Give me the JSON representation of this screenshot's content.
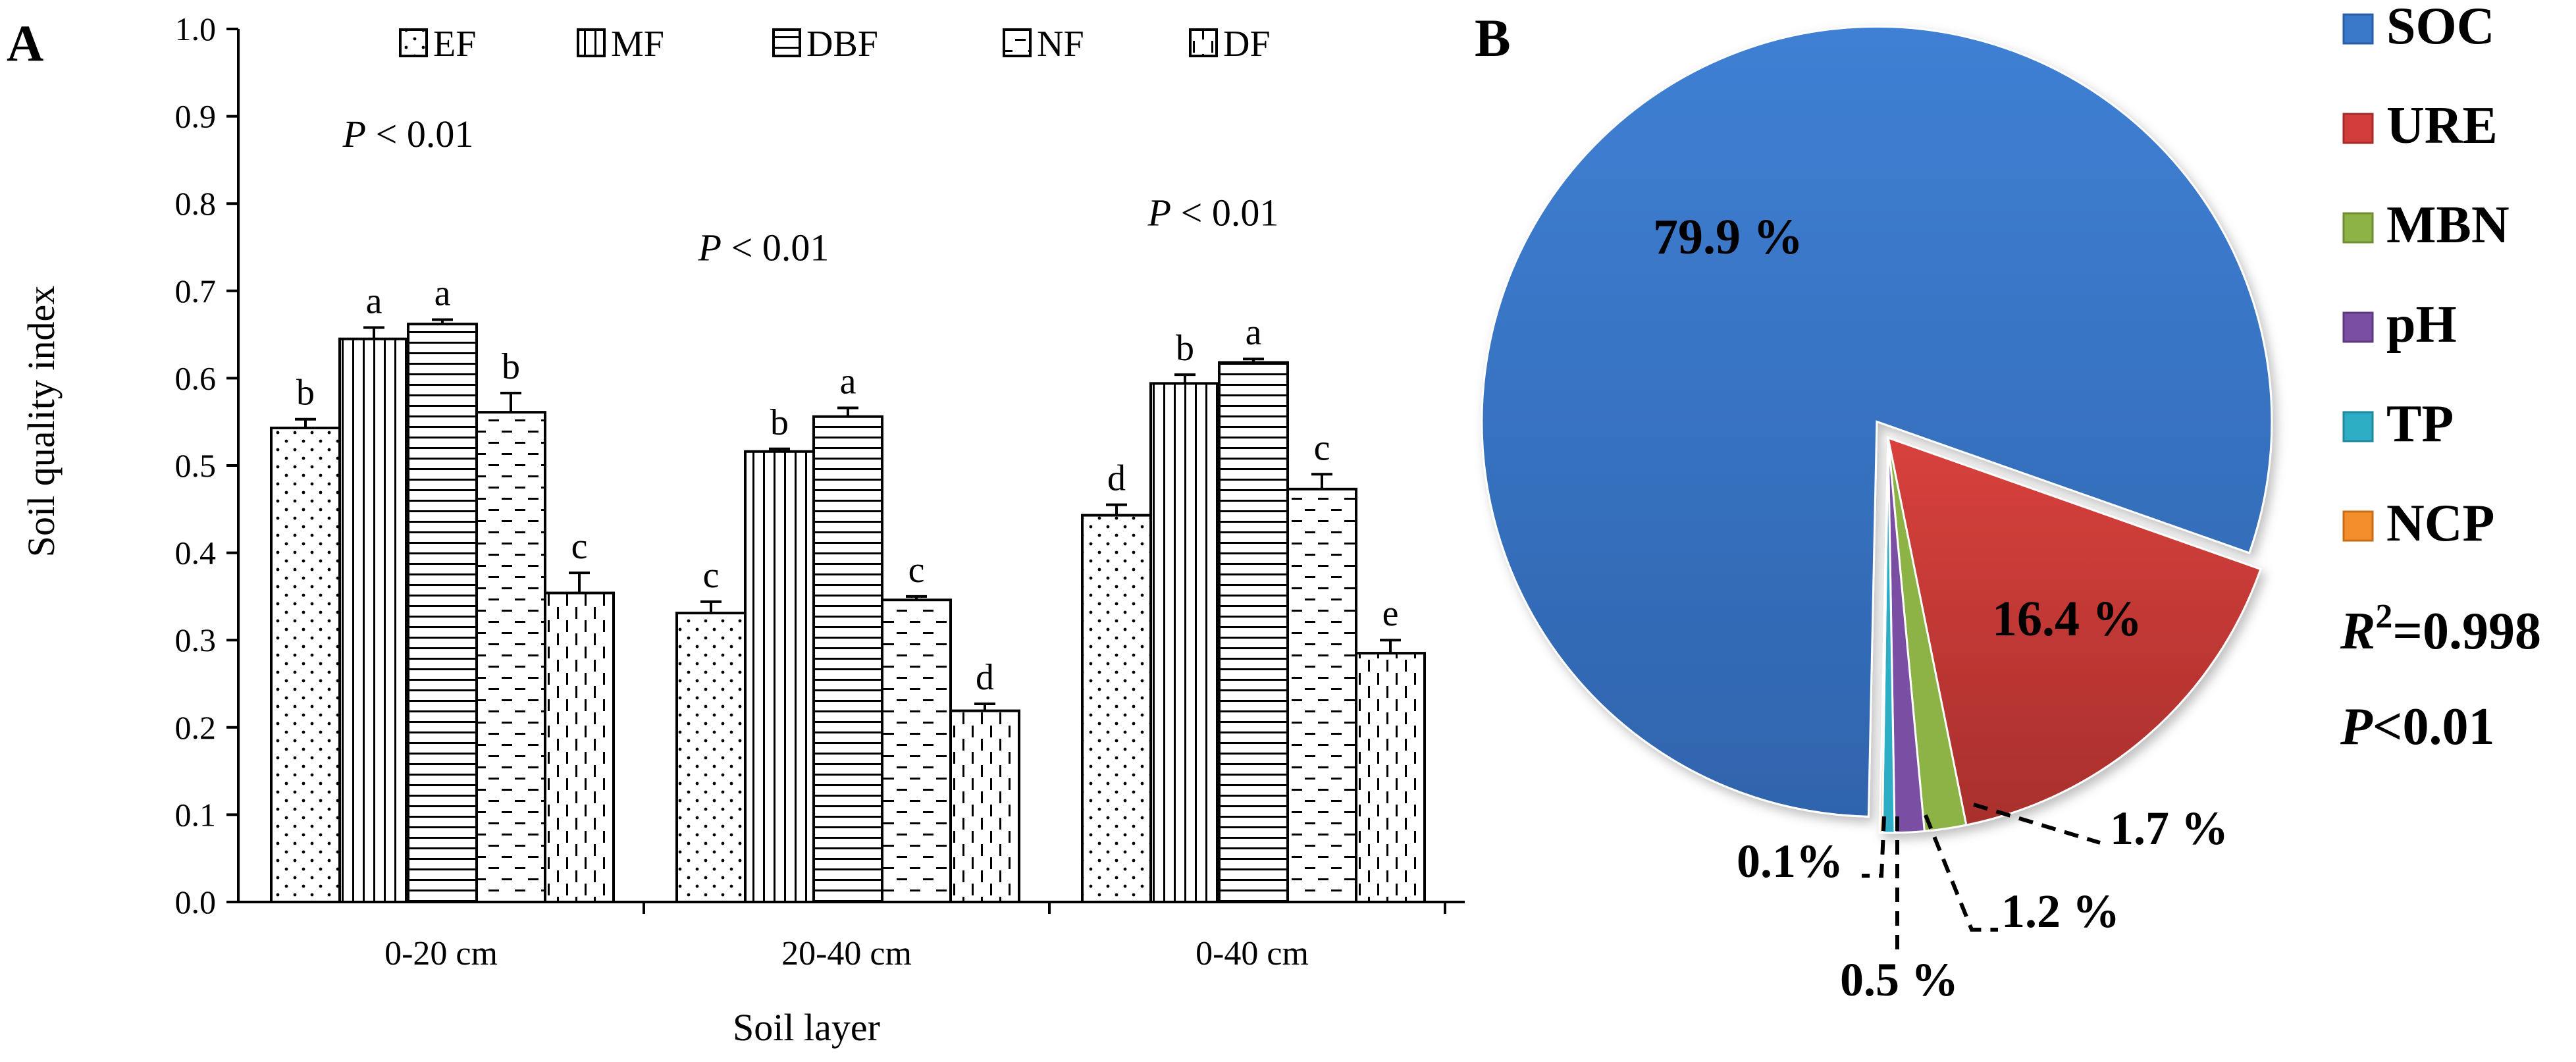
{
  "panel_a": {
    "label": "A",
    "legend_swatch_glyph": "□"
  },
  "panel_b": {
    "label": "B",
    "r2_symbol": "R",
    "r2_sup": "2",
    "r2_value": "=0.998",
    "p_symbol": "P",
    "p_value": "<0.01"
  },
  "chart_data": [
    {
      "type": "bar",
      "title": "",
      "xlabel": "Soil layer",
      "ylabel": "Soil quality index",
      "ylim": [
        0,
        1.0
      ],
      "yticks": [
        "0.0",
        "0.1",
        "0.2",
        "0.3",
        "0.4",
        "0.5",
        "0.6",
        "0.7",
        "0.8",
        "0.9",
        "1.0"
      ],
      "categories": [
        "0-20 cm",
        "20-40 cm",
        "0-40 cm"
      ],
      "grid": false,
      "legend_position": "top",
      "series": [
        {
          "name": "EF",
          "pattern": "dots",
          "values": [
            0.543,
            0.331,
            0.443
          ],
          "errors": [
            0.01,
            0.013,
            0.012
          ],
          "letters": [
            "b",
            "c",
            "d"
          ]
        },
        {
          "name": "MF",
          "pattern": "vertical",
          "values": [
            0.645,
            0.516,
            0.594
          ],
          "errors": [
            0.013,
            0.003,
            0.01
          ],
          "letters": [
            "a",
            "b",
            "b"
          ]
        },
        {
          "name": "DBF",
          "pattern": "horizontal",
          "values": [
            0.662,
            0.556,
            0.618
          ],
          "errors": [
            0.005,
            0.01,
            0.004
          ],
          "letters": [
            "a",
            "a",
            "a"
          ]
        },
        {
          "name": "NF",
          "pattern": "dashed-h",
          "values": [
            0.561,
            0.346,
            0.473
          ],
          "errors": [
            0.022,
            0.004,
            0.017
          ],
          "letters": [
            "b",
            "c",
            "c"
          ]
        },
        {
          "name": "DF",
          "pattern": "dashed-v",
          "values": [
            0.354,
            0.219,
            0.285
          ],
          "errors": [
            0.023,
            0.008,
            0.015
          ],
          "letters": [
            "c",
            "d",
            "e"
          ]
        }
      ],
      "annotations": [
        {
          "category": "0-20 cm",
          "text_italic": "P",
          "text": " < 0.01",
          "y": 0.88
        },
        {
          "category": "20-40 cm",
          "text_italic": "P",
          "text": " < 0.01",
          "y": 0.75
        },
        {
          "category": "0-40 cm",
          "text_italic": "P",
          "text": " < 0.01",
          "y": 0.79
        }
      ]
    },
    {
      "type": "pie",
      "title": "",
      "start": "top, clockwise",
      "slices": [
        {
          "name": "SOC",
          "value": 79.9,
          "label": "79.9 %",
          "color": "#3a78c9",
          "color_dark": "#2a5da5",
          "exploded": true
        },
        {
          "name": "URE",
          "value": 16.4,
          "label": "16.4 %",
          "color": "#d23c3a",
          "color_dark": "#a52b29"
        },
        {
          "name": "MBN",
          "value": 1.7,
          "label": "1.7 %",
          "color": "#8db347",
          "color_dark": "#6e8d33"
        },
        {
          "name": "pH",
          "value": 1.2,
          "label": "1.2 %",
          "color": "#7a4fa3",
          "color_dark": "#5d3a80"
        },
        {
          "name": "TP",
          "value": 0.5,
          "label": "0.5 %",
          "color": "#2eaec5",
          "color_dark": "#1f8a9d"
        },
        {
          "name": "NCP",
          "value": 0.1,
          "label": "0.1%",
          "color": "#f28e2b",
          "color_dark": "#c86d15"
        }
      ],
      "legend_position": "right"
    }
  ]
}
